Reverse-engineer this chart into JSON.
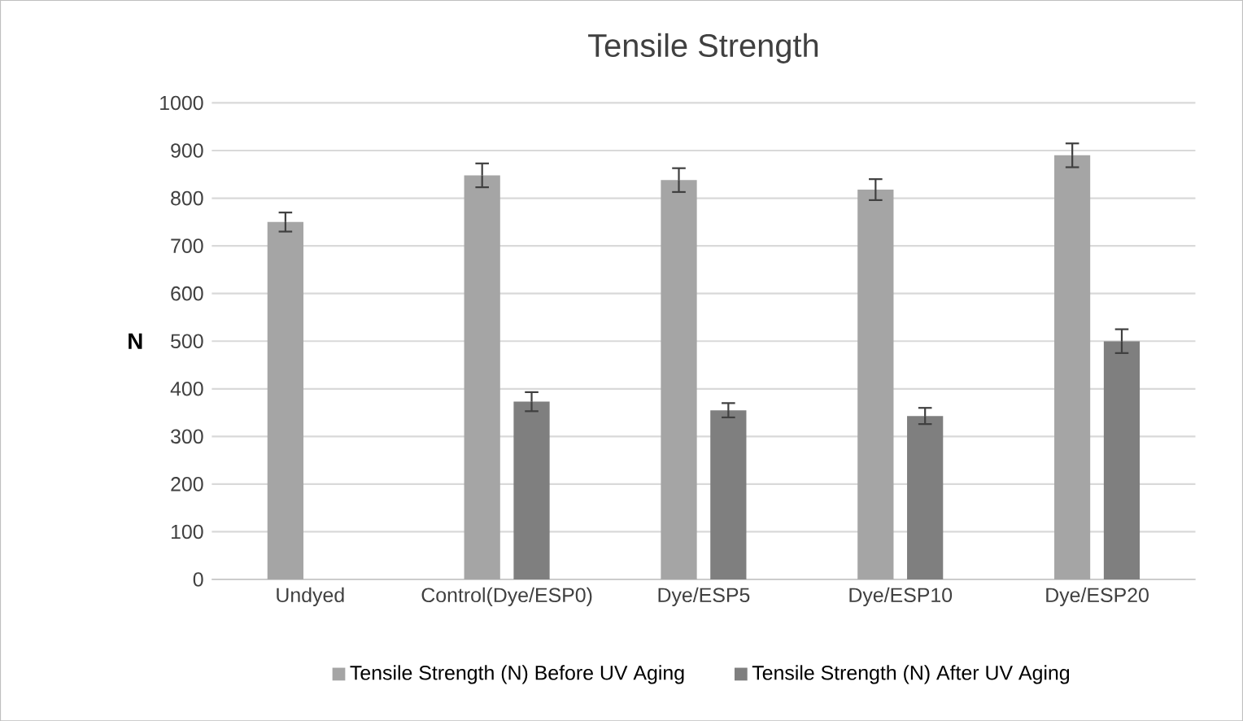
{
  "chart_data": {
    "type": "bar",
    "title": "Tensile Strength",
    "ylabel": "N",
    "categories": [
      "Undyed",
      "Control(Dye/ESP0)",
      "Dye/ESP5",
      "Dye/ESP10",
      "Dye/ESP20"
    ],
    "series": [
      {
        "name": "Tensile Strength (N) Before UV Aging",
        "color": "#a5a5a5",
        "values": [
          750,
          848,
          838,
          818,
          890
        ],
        "errors": [
          20,
          25,
          25,
          22,
          25
        ]
      },
      {
        "name": "Tensile Strength (N) After UV Aging",
        "color": "#7f7f7f",
        "values": [
          null,
          373,
          355,
          343,
          500
        ],
        "errors": [
          null,
          20,
          15,
          17,
          25
        ]
      }
    ],
    "ylim": [
      0,
      1000
    ],
    "yticks": [
      0,
      100,
      200,
      300,
      400,
      500,
      600,
      700,
      800,
      900,
      1000
    ],
    "grid": "y",
    "legend": "bottom"
  }
}
